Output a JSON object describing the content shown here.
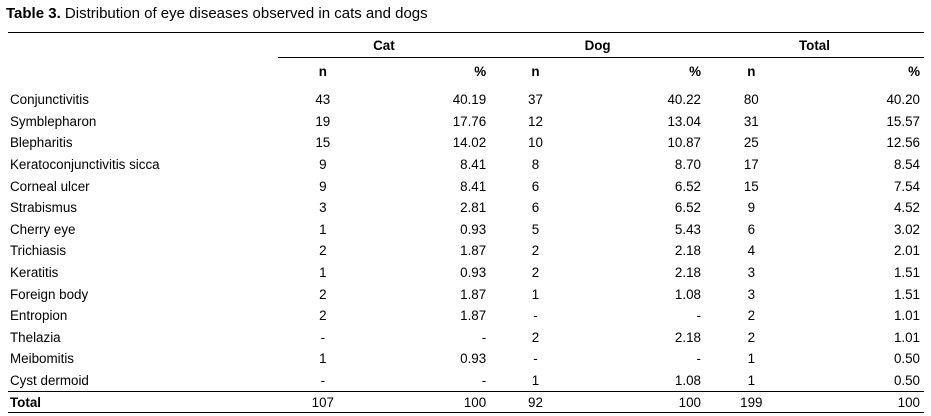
{
  "caption": {
    "label": "Table 3.",
    "text": " Distribution of eye diseases observed in cats and dogs"
  },
  "headers": {
    "groups": [
      "Cat",
      "Dog",
      "Total"
    ],
    "sub": [
      "n",
      "%",
      "n",
      "%",
      "n",
      "%"
    ]
  },
  "rows": [
    {
      "name": "Conjunctivitis",
      "cells": [
        "43",
        "40.19",
        "37",
        "40.22",
        "80",
        "40.20"
      ]
    },
    {
      "name": "Symblepharon",
      "cells": [
        "19",
        "17.76",
        "12",
        "13.04",
        "31",
        "15.57"
      ]
    },
    {
      "name": "Blepharitis",
      "cells": [
        "15",
        "14.02",
        "10",
        "10.87",
        "25",
        "12.56"
      ]
    },
    {
      "name": "Keratoconjunctivitis sicca",
      "cells": [
        "9",
        "8.41",
        "8",
        "8.70",
        "17",
        "8.54"
      ]
    },
    {
      "name": "Corneal ulcer",
      "cells": [
        "9",
        "8.41",
        "6",
        "6.52",
        "15",
        "7.54"
      ]
    },
    {
      "name": "Strabismus",
      "cells": [
        "3",
        "2.81",
        "6",
        "6.52",
        "9",
        "4.52"
      ]
    },
    {
      "name": "Cherry eye",
      "cells": [
        "1",
        "0.93",
        "5",
        "5.43",
        "6",
        "3.02"
      ]
    },
    {
      "name": "Trichiasis",
      "cells": [
        "2",
        "1.87",
        "2",
        "2.18",
        "4",
        "2.01"
      ]
    },
    {
      "name": "Keratitis",
      "cells": [
        "1",
        "0.93",
        "2",
        "2.18",
        "3",
        "1.51"
      ]
    },
    {
      "name": "Foreign body",
      "cells": [
        "2",
        "1.87",
        "1",
        "1.08",
        "3",
        "1.51"
      ]
    },
    {
      "name": "Entropion",
      "cells": [
        "2",
        "1.87",
        "-",
        "-",
        "2",
        "1.01"
      ]
    },
    {
      "name": "Thelazia",
      "cells": [
        "-",
        "-",
        "2",
        "2.18",
        "2",
        "1.01"
      ]
    },
    {
      "name": "Meibomitis",
      "cells": [
        "1",
        "0.93",
        "-",
        "-",
        "1",
        "0.50"
      ]
    },
    {
      "name": "Cyst dermoid",
      "cells": [
        "-",
        "-",
        "1",
        "1.08",
        "1",
        "0.50"
      ]
    }
  ],
  "total": {
    "name": "Total",
    "cells": [
      "107",
      "100",
      "92",
      "100",
      "199",
      "100"
    ]
  }
}
